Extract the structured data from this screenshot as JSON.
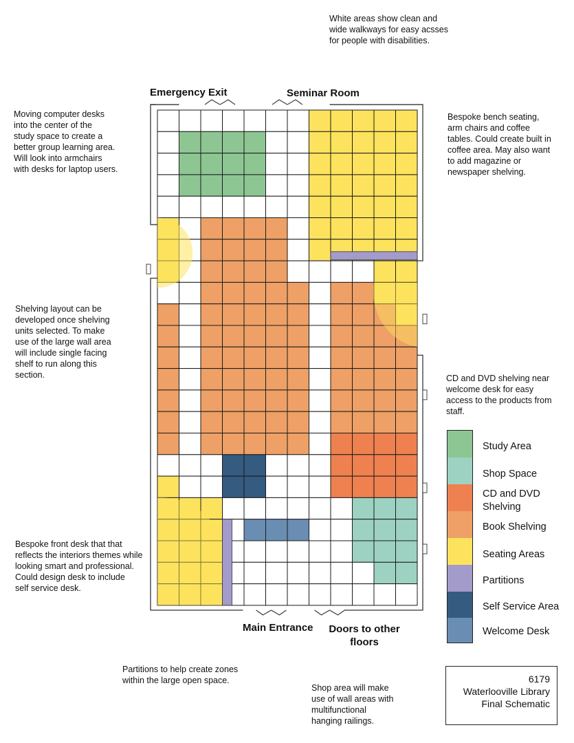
{
  "notes": {
    "walkways": "White areas show clean and\nwide walkways for easy acsses\nfor people with disabilities.",
    "computer_desks": "Moving computer desks\n into the center of the\nstudy space to create a\nbetter group learning area.\n Will look into armchairs\nwith desks for laptop users.",
    "bench_seating": "Bespoke bench seating,\narm chairs and coffee\ntables. Could create built in\ncoffee area. May also want\nto add magazine or\nnewspaper shelving.",
    "shelving_layout": "Shelving layout can be\ndeveloped once shelving\nunits selected. To make\nuse of the large wall area\nwill include single facing\nshelf to run along this\nsection.",
    "cd_dvd": "CD and DVD shelving near\nwelcome desk for easy\naccess to the products from\nstaff.",
    "front_desk": "Bespoke front desk that that\nreflects the interiors themes while\nlooking smart and professional.\nCould design desk to include\nself service desk.",
    "partitions": "Partitions to help create zones\nwithin the large open space.",
    "shop_area": "Shop area will make\nuse of wall areas with\nmultifunctional\nhanging railings."
  },
  "labels": {
    "emergency_exit": "Emergency Exit",
    "seminar_room": "Seminar Room",
    "main_entrance": "Main Entrance",
    "doors_other_floors": "Doors to other\nfloors"
  },
  "legend": [
    {
      "label": "Study Area",
      "color": "#8dc693"
    },
    {
      "label": "Shop Space",
      "color": "#9dd2c2"
    },
    {
      "label": "CD and DVD\n Shelving",
      "color": "#ee814f"
    },
    {
      "label": "Book Shelving",
      "color": "#eea066"
    },
    {
      "label": "Seating Areas",
      "color": "#fde35d"
    },
    {
      "label": "Partitions",
      "color": "#a39bc9"
    },
    {
      "label": "Self Service Area",
      "color": "#355b80"
    },
    {
      "label": "Welcome Desk",
      "color": "#6a8db3"
    }
  ],
  "title_block": {
    "number": "6179",
    "line1": "Waterlooville Library",
    "line2": "Final Schematic"
  },
  "floor_plan": {
    "columns": 12,
    "rows": 23,
    "grid": [
      "WWWWWWWYYYYY",
      "WSSSSWWYYYYY",
      "WSSSSWWYYYYY",
      "WSSSSWWYYYYY",
      "WWWWWWWYYYYY",
      "YWBBBBWYYYYY",
      "YWBBBBWYYYYY",
      "YWBBBBWWWWYY",
      "WWBBBBBWBBYY",
      "BWBBBBBWBBBY",
      "BWBBBBBWBBBB",
      "BWBBBBBWBBBB",
      "BWBBBBBWBBBB",
      "BWBBBBBWBBBB",
      "BWBBBBBWBBBB",
      "BWBBBBBWCCCC",
      "WWWNNWWWCCCC",
      "YWWNNWWWCCCC",
      "YYYWWWWWWHHH",
      "YYYWDDDWWHHH",
      "YYYWWWWWWHHH",
      "YYYWWWWWWWHH",
      "YYYWWWWWWWWW"
    ],
    "cell_colors": {
      "W": "#ffffff",
      "S": "#8dc693",
      "Y": "#fde35d",
      "B": "#eea066",
      "C": "#ee814f",
      "H": "#9dd2c2",
      "N": "#355b80",
      "D": "#6a8db3"
    },
    "partition_color": "#a39bc9",
    "grid_line_color": "#1a1a1a"
  }
}
